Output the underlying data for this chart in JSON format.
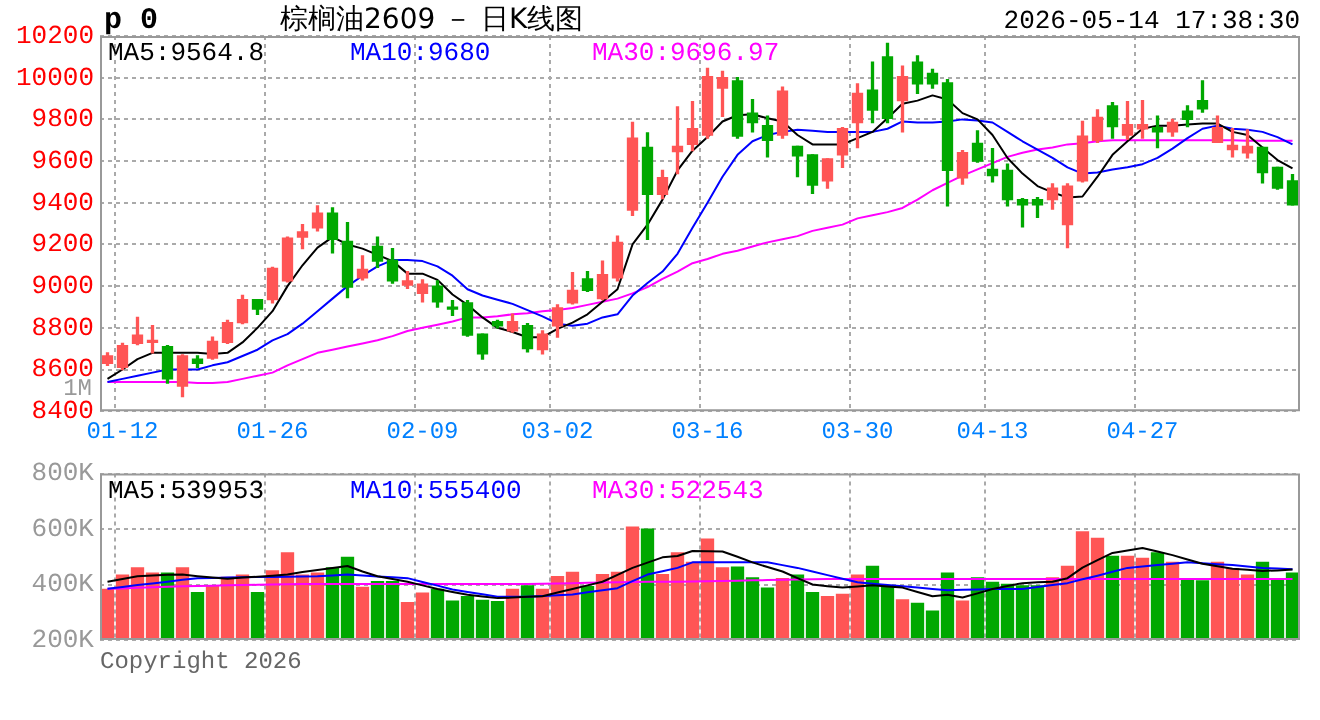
{
  "chart_data": [
    {
      "type": "candlestick",
      "title": "棕榈油2609 － 日K线图",
      "annotations": [
        "p 0",
        "2026-05-14 17:38:30",
        "1M"
      ],
      "categories": [
        null,
        "01-12",
        null,
        null,
        null,
        null,
        null,
        null,
        null,
        null,
        null,
        "01-26",
        null,
        null,
        null,
        null,
        null,
        null,
        null,
        null,
        null,
        "02-09",
        null,
        null,
        null,
        null,
        null,
        null,
        null,
        null,
        "03-02",
        null,
        null,
        null,
        null,
        null,
        null,
        null,
        null,
        null,
        "03-16",
        null,
        null,
        null,
        null,
        null,
        null,
        null,
        null,
        null,
        "03-30",
        null,
        null,
        null,
        null,
        null,
        null,
        null,
        null,
        "04-13",
        null,
        null,
        null,
        null,
        null,
        null,
        null,
        null,
        null,
        "04-27",
        null,
        null,
        null,
        null,
        null,
        null,
        null,
        null,
        null,
        null
      ],
      "ohlc": [
        [
          8630,
          8680,
          8620,
          8665
        ],
        [
          8610,
          8725,
          8600,
          8715
        ],
        [
          8725,
          8850,
          8720,
          8765
        ],
        [
          8730,
          8810,
          8680,
          8735
        ],
        [
          8710,
          8715,
          8535,
          8555
        ],
        [
          8520,
          8670,
          8470,
          8665
        ],
        [
          8650,
          8665,
          8610,
          8630
        ],
        [
          8655,
          8755,
          8650,
          8735
        ],
        [
          8730,
          8835,
          8725,
          8825
        ],
        [
          8825,
          8955,
          8820,
          8935
        ],
        [
          8935,
          8935,
          8865,
          8890
        ],
        [
          8935,
          9090,
          8920,
          9085
        ],
        [
          9025,
          9235,
          9020,
          9230
        ],
        [
          9235,
          9295,
          9180,
          9260
        ],
        [
          9280,
          9385,
          9265,
          9350
        ],
        [
          9350,
          9375,
          9160,
          9225
        ],
        [
          9215,
          9305,
          8945,
          8995
        ],
        [
          9040,
          9145,
          9030,
          9080
        ],
        [
          9190,
          9235,
          9090,
          9120
        ],
        [
          9125,
          9180,
          9015,
          9025
        ],
        [
          9005,
          9070,
          8990,
          9025
        ],
        [
          8965,
          9030,
          8925,
          9010
        ],
        [
          9000,
          9025,
          8900,
          8925
        ],
        [
          8895,
          8930,
          8860,
          8890
        ],
        [
          8920,
          8930,
          8760,
          8765
        ],
        [
          8770,
          8770,
          8650,
          8675
        ],
        [
          8830,
          8835,
          8800,
          8810
        ],
        [
          8785,
          8865,
          8780,
          8830
        ],
        [
          8810,
          8820,
          8685,
          8700
        ],
        [
          8695,
          8785,
          8675,
          8770
        ],
        [
          8810,
          8910,
          8755,
          8895
        ],
        [
          8920,
          9065,
          8915,
          8980
        ],
        [
          9035,
          9070,
          8975,
          8980
        ],
        [
          8940,
          9120,
          8935,
          9055
        ],
        [
          9040,
          9240,
          9025,
          9210
        ],
        [
          9365,
          9785,
          9340,
          9710
        ],
        [
          9665,
          9735,
          9225,
          9440
        ],
        [
          9440,
          9555,
          9420,
          9520
        ],
        [
          9645,
          9860,
          9540,
          9670
        ],
        [
          9680,
          9885,
          9650,
          9755
        ],
        [
          9725,
          10045,
          9710,
          10005
        ],
        [
          9950,
          10030,
          9815,
          10000
        ],
        [
          9985,
          10000,
          9710,
          9720
        ],
        [
          9830,
          9895,
          9740,
          9785
        ],
        [
          9770,
          9815,
          9620,
          9700
        ],
        [
          9725,
          9955,
          9710,
          9935
        ],
        [
          9670,
          9670,
          9525,
          9625
        ],
        [
          9630,
          9630,
          9445,
          9485
        ],
        [
          9505,
          9610,
          9470,
          9610
        ],
        [
          9630,
          9760,
          9570,
          9755
        ],
        [
          9785,
          9970,
          9665,
          9925
        ],
        [
          9940,
          10075,
          9785,
          9845
        ],
        [
          10100,
          10165,
          9785,
          9805
        ],
        [
          9890,
          10055,
          9740,
          10005
        ],
        [
          10075,
          10105,
          9925,
          9970
        ],
        [
          10020,
          10040,
          9950,
          9970
        ],
        [
          9975,
          9990,
          9385,
          9555
        ],
        [
          9520,
          9650,
          9490,
          9640
        ],
        [
          9685,
          9745,
          9595,
          9600
        ],
        [
          9560,
          9660,
          9500,
          9530
        ],
        [
          9555,
          9585,
          9385,
          9415
        ],
        [
          9415,
          9420,
          9285,
          9390
        ],
        [
          9415,
          9425,
          9330,
          9390
        ],
        [
          9415,
          9490,
          9370,
          9470
        ],
        [
          9295,
          9490,
          9185,
          9480
        ],
        [
          9505,
          9790,
          9500,
          9720
        ],
        [
          9700,
          9845,
          9690,
          9810
        ],
        [
          9865,
          9880,
          9710,
          9765
        ],
        [
          9725,
          9885,
          9705,
          9775
        ],
        [
          9755,
          9890,
          9710,
          9775
        ],
        [
          9760,
          9815,
          9665,
          9740
        ],
        [
          9740,
          9800,
          9720,
          9785
        ],
        [
          9840,
          9865,
          9765,
          9800
        ],
        [
          9890,
          9985,
          9835,
          9850
        ],
        [
          9690,
          9815,
          9690,
          9760
        ],
        [
          9655,
          9755,
          9620,
          9675
        ],
        [
          9640,
          9750,
          9615,
          9670
        ],
        [
          9665,
          9665,
          9495,
          9545
        ],
        [
          9570,
          9570,
          9465,
          9470
        ],
        [
          9505,
          9535,
          9390,
          9390
        ]
      ],
      "colors": [
        "#ff5555",
        "#ff5555",
        "#ff5555",
        "#ff5555",
        "#00a800",
        "#ff5555",
        "#00a800",
        "#ff5555",
        "#ff5555",
        "#ff5555",
        "#00a800",
        "#ff5555",
        "#ff5555",
        "#ff5555",
        "#ff5555",
        "#00a800",
        "#00a800",
        "#ff5555",
        "#00a800",
        "#00a800",
        "#ff5555",
        "#ff5555",
        "#00a800",
        "#00a800",
        "#00a800",
        "#00a800",
        "#00a800",
        "#ff5555",
        "#00a800",
        "#ff5555",
        "#ff5555",
        "#ff5555",
        "#00a800",
        "#ff5555",
        "#ff5555",
        "#ff5555",
        "#00a800",
        "#ff5555",
        "#ff5555",
        "#ff5555",
        "#ff5555",
        "#ff5555",
        "#00a800",
        "#00a800",
        "#00a800",
        "#ff5555",
        "#00a800",
        "#00a800",
        "#ff5555",
        "#ff5555",
        "#ff5555",
        "#00a800",
        "#00a800",
        "#ff5555",
        "#00a800",
        "#00a800",
        "#00a800",
        "#ff5555",
        "#00a800",
        "#00a800",
        "#00a800",
        "#00a800",
        "#00a800",
        "#ff5555",
        "#ff5555",
        "#ff5555",
        "#ff5555",
        "#00a800",
        "#ff5555",
        "#ff5555",
        "#00a800",
        "#ff5555",
        "#00a800",
        "#00a800",
        "#ff5555",
        "#ff5555",
        "#ff5555",
        "#00a800",
        "#00a800",
        "#00a800"
      ],
      "series": [
        {
          "type": "line",
          "name": "MA5:9564.8",
          "color": "#000000",
          "values": [
            8555,
            8600,
            8650,
            8680,
            8680,
            8680,
            8680,
            8675,
            8680,
            8730,
            8800,
            8880,
            9000,
            9100,
            9185,
            9235,
            9200,
            9180,
            9150,
            9120,
            9060,
            9060,
            9030,
            8960,
            8910,
            8850,
            8800,
            8780,
            8755,
            8755,
            8795,
            8825,
            8865,
            8925,
            8985,
            9200,
            9295,
            9415,
            9555,
            9650,
            9715,
            9790,
            9820,
            9825,
            9805,
            9790,
            9725,
            9680,
            9680,
            9680,
            9710,
            9740,
            9805,
            9875,
            9890,
            9915,
            9895,
            9830,
            9800,
            9725,
            9615,
            9540,
            9480,
            9450,
            9425,
            9430,
            9525,
            9630,
            9695,
            9755,
            9770,
            9770,
            9775,
            9780,
            9780,
            9740,
            9725,
            9665,
            9605,
            9565
          ]
        },
        {
          "type": "line",
          "name": "MA10:9680",
          "color": "#0000ff",
          "values": [
            8540,
            8555,
            8570,
            8585,
            8600,
            8600,
            8600,
            8620,
            8635,
            8665,
            8695,
            8740,
            8770,
            8820,
            8880,
            8940,
            9000,
            9050,
            9095,
            9125,
            9125,
            9120,
            9095,
            9050,
            8985,
            8955,
            8935,
            8915,
            8885,
            8855,
            8820,
            8810,
            8820,
            8850,
            8865,
            8955,
            9015,
            9070,
            9155,
            9280,
            9400,
            9525,
            9630,
            9695,
            9725,
            9740,
            9750,
            9745,
            9740,
            9740,
            9740,
            9740,
            9755,
            9790,
            9785,
            9785,
            9790,
            9800,
            9795,
            9785,
            9740,
            9695,
            9655,
            9615,
            9570,
            9540,
            9545,
            9560,
            9570,
            9585,
            9615,
            9660,
            9710,
            9755,
            9770,
            9755,
            9750,
            9740,
            9715,
            9680
          ]
        },
        {
          "type": "line",
          "name": "MA30:9696.97",
          "color": "#ff00ff",
          "values": [
            8540,
            8540,
            8540,
            8540,
            8540,
            8540,
            8535,
            8535,
            8540,
            8555,
            8570,
            8585,
            8620,
            8650,
            8680,
            8695,
            8710,
            8725,
            8740,
            8760,
            8785,
            8800,
            8815,
            8830,
            8850,
            8850,
            8855,
            8865,
            8870,
            8880,
            8885,
            8895,
            8910,
            8925,
            8940,
            8965,
            8995,
            9035,
            9070,
            9110,
            9130,
            9155,
            9170,
            9190,
            9210,
            9225,
            9240,
            9265,
            9280,
            9295,
            9325,
            9340,
            9355,
            9375,
            9415,
            9460,
            9495,
            9530,
            9560,
            9590,
            9620,
            9640,
            9655,
            9665,
            9680,
            9685,
            9695,
            9700,
            9700,
            9700,
            9700,
            9700,
            9700,
            9700,
            9700,
            9700,
            9698,
            9698,
            9697,
            9697
          ]
        }
      ],
      "ylim": [
        8400,
        10200
      ],
      "yticks": [
        8400,
        8600,
        8800,
        9000,
        9200,
        9400,
        9600,
        9800,
        10000,
        10200
      ],
      "grid": true,
      "legend": "top"
    },
    {
      "type": "bar",
      "annotations": [
        "Copyright 2026"
      ],
      "tick_labels": "y",
      "categories": [
        null,
        null,
        null,
        null,
        null,
        null,
        null,
        null,
        null,
        null,
        null,
        null,
        null,
        null,
        null,
        null,
        null,
        null,
        null,
        null,
        null,
        null,
        null,
        null,
        null,
        null,
        null,
        null,
        null,
        null,
        null,
        null,
        null,
        null,
        null,
        null,
        null,
        null,
        null,
        null,
        null,
        null,
        null,
        null,
        null,
        null,
        null,
        null,
        null,
        null,
        null,
        null,
        null,
        null,
        null,
        null,
        null,
        null,
        null,
        null,
        null,
        null,
        null,
        null,
        null,
        null,
        null,
        null,
        null,
        null,
        null,
        null,
        null,
        null,
        null,
        null,
        null,
        null,
        null,
        null
      ],
      "series": [
        {
          "type": "bar",
          "colors": [
            "#ff5555",
            "#ff5555",
            "#ff5555",
            "#ff5555",
            "#00a800",
            "#ff5555",
            "#00a800",
            "#ff5555",
            "#ff5555",
            "#ff5555",
            "#00a800",
            "#ff5555",
            "#ff5555",
            "#ff5555",
            "#ff5555",
            "#00a800",
            "#00a800",
            "#ff5555",
            "#00a800",
            "#00a800",
            "#ff5555",
            "#ff5555",
            "#00a800",
            "#00a800",
            "#00a800",
            "#00a800",
            "#00a800",
            "#ff5555",
            "#00a800",
            "#ff5555",
            "#ff5555",
            "#ff5555",
            "#00a800",
            "#ff5555",
            "#ff5555",
            "#ff5555",
            "#00a800",
            "#ff5555",
            "#ff5555",
            "#ff5555",
            "#ff5555",
            "#ff5555",
            "#00a800",
            "#00a800",
            "#00a800",
            "#ff5555",
            "#00a800",
            "#00a800",
            "#ff5555",
            "#ff5555",
            "#ff5555",
            "#00a800",
            "#00a800",
            "#ff5555",
            "#00a800",
            "#00a800",
            "#00a800",
            "#ff5555",
            "#00a800",
            "#00a800",
            "#00a800",
            "#00a800",
            "#00a800",
            "#ff5555",
            "#ff5555",
            "#ff5555",
            "#ff5555",
            "#00a800",
            "#ff5555",
            "#ff5555",
            "#00a800",
            "#ff5555",
            "#00a800",
            "#00a800",
            "#ff5555",
            "#ff5555",
            "#ff5555",
            "#00a800",
            "#00a800",
            "#00a800"
          ],
          "values": [
            382000,
            434000,
            460000,
            441000,
            441000,
            460000,
            371000,
            395000,
            426000,
            434000,
            371000,
            449000,
            514000,
            434000,
            441000,
            460000,
            498000,
            390000,
            410000,
            410000,
            335000,
            369000,
            382000,
            340000,
            356000,
            343000,
            338000,
            382000,
            395000,
            382000,
            428000,
            444000,
            392000,
            436000,
            444000,
            607000,
            600000,
            436000,
            514000,
            480000,
            564000,
            460000,
            463000,
            424000,
            387000,
            421000,
            434000,
            371000,
            356000,
            364000,
            434000,
            465000,
            395000,
            345000,
            332000,
            304000,
            441000,
            340000,
            424000,
            408000,
            400000,
            395000,
            395000,
            424000,
            465000,
            590000,
            566000,
            501000,
            501000,
            494000,
            514000,
            480000,
            416000,
            413000,
            480000,
            457000,
            434000,
            480000,
            421000,
            441000
          ]
        },
        {
          "type": "line",
          "name": "MA5:539953",
          "color": "#000000",
          "values": [
            410000,
            420000,
            430000,
            433000,
            435000,
            436000,
            430000,
            425000,
            421000,
            425000,
            428000,
            432000,
            436000,
            445000,
            452000,
            460000,
            467000,
            447000,
            430000,
            420000,
            410000,
            397000,
            384000,
            373000,
            363000,
            357000,
            351000,
            353000,
            356000,
            358000,
            371000,
            384000,
            397000,
            410000,
            435000,
            460000,
            479000,
            498000,
            503000,
            521000,
            520000,
            519000,
            500000,
            480000,
            463000,
            447000,
            423000,
            400000,
            394000,
            389000,
            393000,
            397000,
            393000,
            389000,
            373000,
            358000,
            363000,
            353000,
            368000,
            384000,
            395000,
            405000,
            408000,
            410000,
            423000,
            461000,
            488000,
            514000,
            523000,
            532000,
            519000,
            506000,
            490000,
            475000,
            466000,
            457000,
            453000,
            449000,
            451000,
            454000
          ]
        },
        {
          "type": "line",
          "name": "MA10:555400",
          "color": "#0000ff",
          "values": [
            385000,
            391000,
            398000,
            404000,
            410000,
            417000,
            423000,
            424000,
            425000,
            426000,
            427000,
            427000,
            428000,
            429000,
            430000,
            433000,
            436000,
            433000,
            429000,
            426000,
            423000,
            409000,
            396000,
            382000,
            373000,
            365000,
            356000,
            356000,
            356000,
            359000,
            361000,
            364000,
            372000,
            379000,
            387000,
            412000,
            436000,
            448000,
            460000,
            480000,
            480000,
            480000,
            480000,
            480000,
            480000,
            470000,
            460000,
            447000,
            434000,
            421000,
            408000,
            403000,
            398000,
            394000,
            389000,
            384000,
            379000,
            381000,
            382000,
            384000,
            384000,
            384000,
            391000,
            398000,
            405000,
            419000,
            432000,
            446000,
            460000,
            465000,
            470000,
            475000,
            480000,
            477000,
            473000,
            470000,
            465000,
            460000,
            458000,
            455000
          ]
        },
        {
          "type": "line",
          "name": "MA30:522543",
          "color": "#ff00ff",
          "values": [
            385000,
            386000,
            388000,
            390000,
            392000,
            394000,
            395000,
            396000,
            397000,
            398000,
            399000,
            400000,
            401000,
            402000,
            402000,
            402000,
            402000,
            402000,
            402000,
            402000,
            402000,
            402000,
            402000,
            402000,
            402000,
            402000,
            402000,
            402000,
            402000,
            403000,
            404000,
            405000,
            406000,
            407000,
            408000,
            409000,
            410000,
            410000,
            410000,
            411000,
            412000,
            413000,
            414000,
            415000,
            416000,
            417000,
            418000,
            419000,
            420000,
            420000,
            420000,
            420000,
            420000,
            420000,
            420000,
            420000,
            420000,
            420000,
            420000,
            420000,
            420000,
            420000,
            420000,
            420000,
            420000,
            420000,
            420000,
            420000,
            420000,
            420000,
            420000,
            420000,
            420000,
            420000,
            420000,
            420000,
            420000,
            420000,
            420000,
            420000
          ]
        }
      ],
      "ylim": [
        200000,
        800000
      ],
      "yticks": [
        {
          "value": 200000,
          "label": "200K"
        },
        {
          "value": 400000,
          "label": "400K"
        },
        {
          "value": 600000,
          "label": "600K"
        },
        {
          "value": 800000,
          "label": "800K"
        }
      ],
      "grid": true,
      "legend": "top"
    }
  ]
}
